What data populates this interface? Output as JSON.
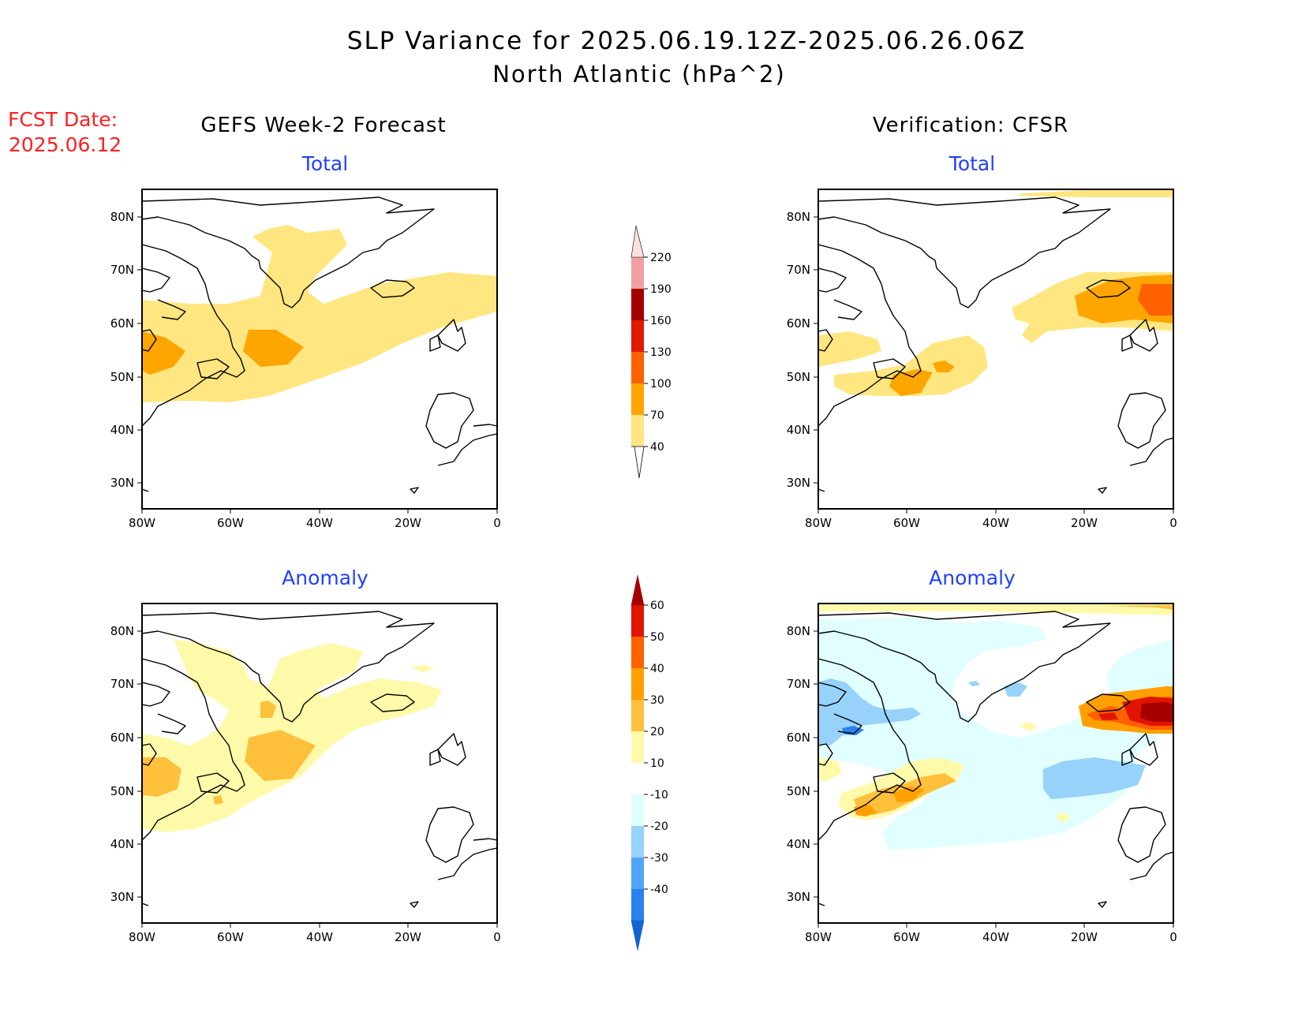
{
  "title": {
    "line1": "SLP Variance for 2025.06.19.12Z-2025.06.26.06Z",
    "line2": "North Atlantic (hPa^2)"
  },
  "fcst": {
    "line1": "FCST Date:",
    "line2": "2025.06.12"
  },
  "columns": {
    "left": "GEFS Week-2 Forecast",
    "right": "Verification: CFSR"
  },
  "panel_labels": {
    "total": "Total",
    "anomaly": "Anomaly"
  },
  "axes": {
    "lat_ticks": [
      "30N",
      "40N",
      "50N",
      "60N",
      "70N",
      "80N"
    ],
    "lon_ticks": [
      "80W",
      "60W",
      "40W",
      "20W",
      "0"
    ]
  },
  "colorbars": {
    "total": {
      "levels": [
        "40",
        "70",
        "100",
        "130",
        "160",
        "190",
        "220"
      ],
      "colors": [
        "#ffe680",
        "#ffa500",
        "#ff6000",
        "#e01a00",
        "#a50000",
        "#f0a0a0",
        "#fce0e0"
      ]
    },
    "anomaly": {
      "levels": [
        "-40",
        "-30",
        "-20",
        "-10",
        "10",
        "20",
        "30",
        "40",
        "50",
        "60"
      ],
      "colors": [
        "#1464d2",
        "#2882f0",
        "#50a5f5",
        "#96d2fa",
        "#e1ffff",
        "#ffffff",
        "#fffaaa",
        "#ffc03c",
        "#ffa000",
        "#ff6000",
        "#e11400",
        "#a50000"
      ]
    }
  },
  "colors": {
    "title": "#000000",
    "fcst": "#ff2020",
    "panel_label": "#2040ff"
  }
}
